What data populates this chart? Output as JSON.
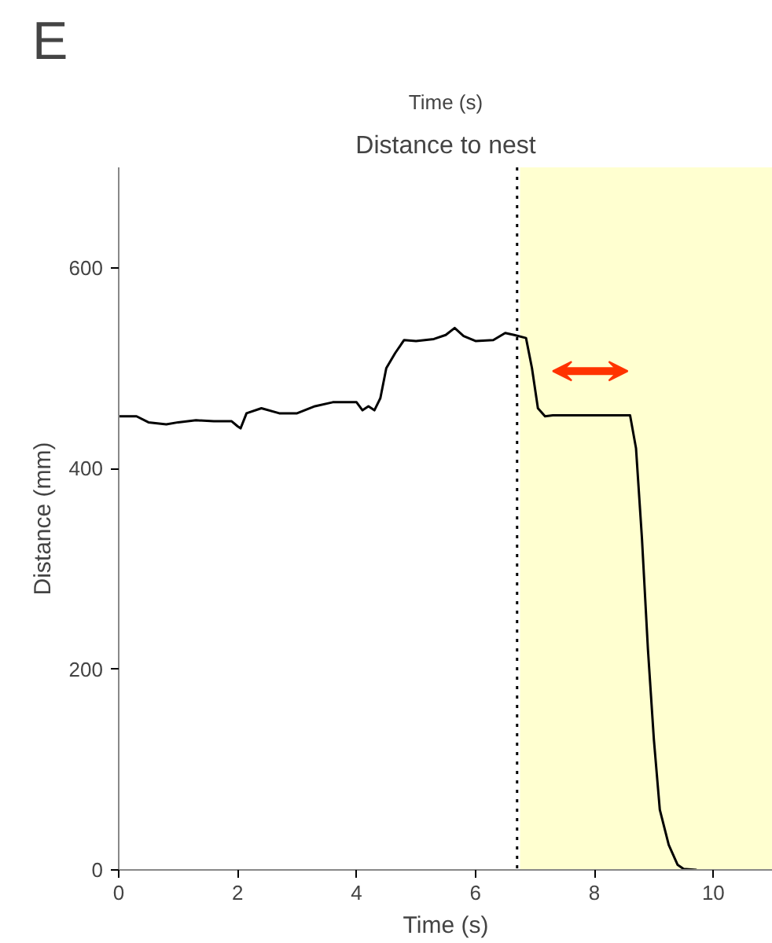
{
  "chart_data": {
    "type": "line",
    "title": "Distance to nest",
    "xlabel": "Time (s)",
    "ylabel": "Distance (mm)",
    "annotations": [
      "E",
      "Time (s)"
    ],
    "x": [
      0,
      0.3,
      0.5,
      0.8,
      1.0,
      1.3,
      1.6,
      1.9,
      2.0,
      2.05,
      2.15,
      2.4,
      2.7,
      3.0,
      3.3,
      3.6,
      4.0,
      4.1,
      4.2,
      4.3,
      4.4,
      4.5,
      4.65,
      4.8,
      5.0,
      5.3,
      5.5,
      5.65,
      5.8,
      6.0,
      6.3,
      6.5,
      6.65,
      6.85,
      6.95,
      7.05,
      7.17,
      7.3,
      8.0,
      8.6,
      8.7,
      8.8,
      8.9,
      9.0,
      9.1,
      9.25,
      9.4,
      9.5,
      9.72
    ],
    "series": [
      {
        "color": "#000000",
        "values": [
          452,
          452,
          446,
          444,
          446,
          448,
          447,
          447,
          442,
          440,
          455,
          460,
          455,
          455,
          462,
          466,
          466,
          458,
          462,
          458,
          470,
          500,
          515,
          528,
          527,
          529,
          533,
          540,
          532,
          527,
          528,
          535,
          533,
          530,
          500,
          460,
          452,
          453,
          453,
          453,
          420,
          330,
          220,
          130,
          60,
          25,
          5,
          1,
          0
        ]
      }
    ],
    "xlim": [
      0,
      11
    ],
    "ylim": [
      0,
      700
    ],
    "xticks": [
      0,
      2,
      4,
      6,
      8,
      10
    ],
    "yticks": [
      0,
      200,
      400,
      600
    ],
    "grid": false,
    "marker": "none",
    "line_style": "solid",
    "ref_lines": [
      {
        "axis": "x",
        "value": 6.7,
        "label": null,
        "color": "#000000",
        "line_style": "dotted"
      }
    ],
    "bands": [
      {
        "axis": "x",
        "from": 6.75,
        "to": 11,
        "label": null,
        "color": "#ffffd0"
      }
    ]
  }
}
